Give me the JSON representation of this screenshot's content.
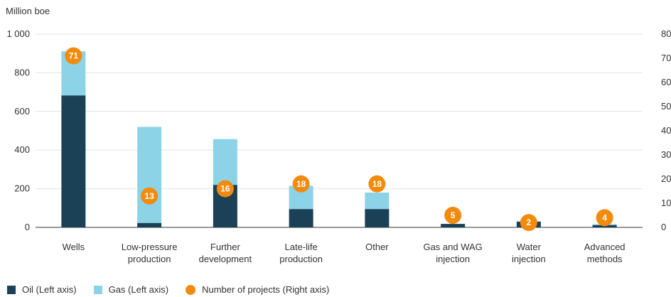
{
  "colors": {
    "oil": "#1b4157",
    "gas": "#8dd3e7",
    "projects": "#f28b0c",
    "axis": "#333333",
    "grid": "#e3e3e3"
  },
  "chart_data": {
    "type": "bar",
    "stacked": true,
    "title": "",
    "ylabel_left": "Million boe",
    "ylim_left": [
      0,
      1000
    ],
    "yticks_left": [
      "0",
      "200",
      "400",
      "600",
      "800",
      "1 000"
    ],
    "ylim_right": [
      0,
      80
    ],
    "yticks_right": [
      "0",
      "10",
      "20",
      "30",
      "40",
      "50",
      "60",
      "70",
      "80"
    ],
    "grid": "horizontal",
    "legend_placement": "bottom-left",
    "categories": [
      [
        "Wells"
      ],
      [
        "Low-pressure",
        "production"
      ],
      [
        "Further",
        "development"
      ],
      [
        "Late-life",
        "production"
      ],
      [
        "Other"
      ],
      [
        "Gas and WAG",
        "injection"
      ],
      [
        "Water",
        "injection"
      ],
      [
        "Advanced",
        "methods"
      ]
    ],
    "series": [
      {
        "name": "Oil (Left axis)",
        "axis": "left",
        "kind": "bar",
        "values": [
          683,
          23,
          220,
          95,
          95,
          18,
          30,
          12
        ]
      },
      {
        "name": "Gas (Left axis)",
        "axis": "left",
        "kind": "bar",
        "values": [
          228,
          497,
          237,
          120,
          85,
          0,
          0,
          5
        ]
      },
      {
        "name": "Number of projects (Right axis)",
        "axis": "right",
        "kind": "dot",
        "values": [
          71,
          13,
          16,
          18,
          18,
          5,
          2,
          4
        ]
      }
    ]
  },
  "legend": {
    "oil_label": "Oil (Left axis)",
    "gas_label": "Gas (Left axis)",
    "projects_label": "Number of projects (Right axis)"
  }
}
